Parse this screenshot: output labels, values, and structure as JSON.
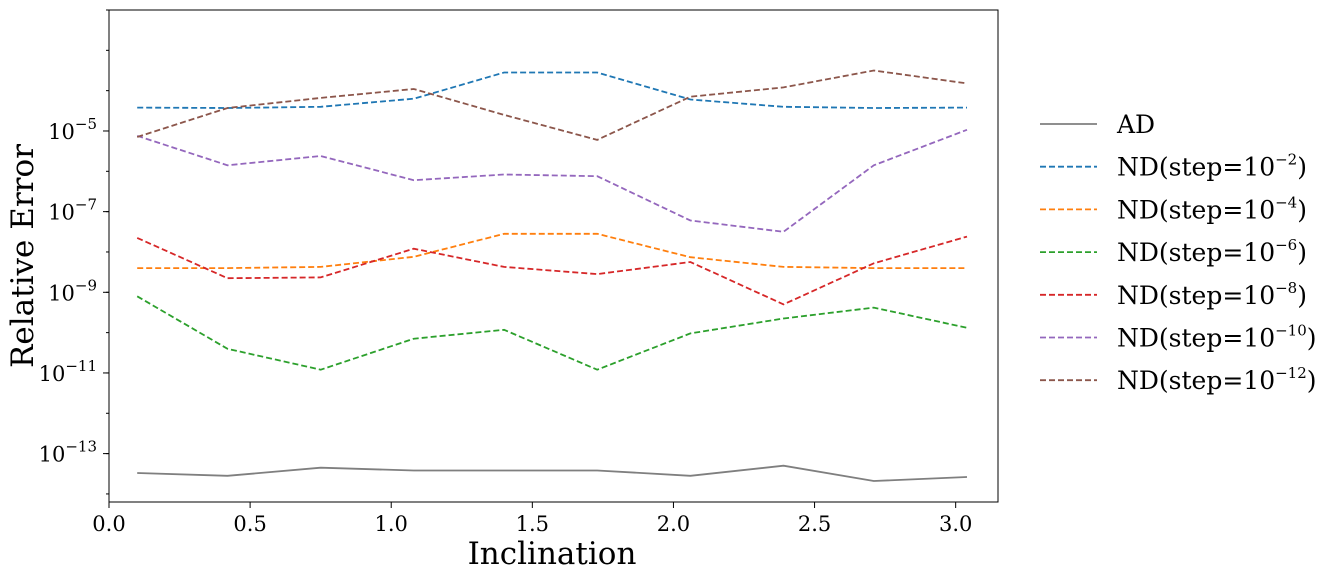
{
  "chart_data": {
    "type": "line",
    "xlabel": "Inclination",
    "ylabel": "Relative Error",
    "xlim": [
      0.0,
      3.15
    ],
    "ylim_log10": [
      -14.2,
      -2.0
    ],
    "yscale": "log",
    "grid": false,
    "legend_placement": "outside-right",
    "x_ticks": [
      {
        "value": 0.0,
        "label": "0.0"
      },
      {
        "value": 0.5,
        "label": "0.5"
      },
      {
        "value": 1.0,
        "label": "1.0"
      },
      {
        "value": 1.5,
        "label": "1.5"
      },
      {
        "value": 2.0,
        "label": "2.0"
      },
      {
        "value": 2.5,
        "label": "2.5"
      },
      {
        "value": 3.0,
        "label": "3.0"
      }
    ],
    "y_ticks": [
      {
        "exp": -5,
        "base": "10",
        "sup": "−5"
      },
      {
        "exp": -7,
        "base": "10",
        "sup": "−7"
      },
      {
        "exp": -9,
        "base": "10",
        "sup": "−9"
      },
      {
        "exp": -11,
        "base": "10",
        "sup": "−11"
      },
      {
        "exp": -13,
        "base": "10",
        "sup": "−13"
      }
    ],
    "x": [
      0.1,
      0.42,
      0.75,
      1.08,
      1.4,
      1.73,
      2.06,
      2.39,
      2.71,
      3.04
    ],
    "series": [
      {
        "name": "AD",
        "label_base": "AD",
        "label_sup": "",
        "label_tail": "",
        "color": "#7f7f7f",
        "dash": "solid",
        "log10": [
          -13.48,
          -13.55,
          -13.35,
          -13.42,
          -13.42,
          -13.42,
          -13.55,
          -13.3,
          -13.68,
          -13.58
        ]
      },
      {
        "name": "ND(step=10^-2)",
        "label_base": "ND(step=10",
        "label_sup": "−2",
        "label_tail": ")",
        "color": "#1f77b4",
        "dash": "dashed",
        "log10": [
          -4.42,
          -4.43,
          -4.4,
          -4.2,
          -3.55,
          -3.55,
          -4.22,
          -4.4,
          -4.43,
          -4.42
        ]
      },
      {
        "name": "ND(step=10^-4)",
        "label_base": "ND(step=10",
        "label_sup": "−4",
        "label_tail": ")",
        "color": "#ff7f0e",
        "dash": "dashed",
        "log10": [
          -8.4,
          -8.4,
          -8.37,
          -8.12,
          -7.55,
          -7.55,
          -8.13,
          -8.37,
          -8.4,
          -8.4
        ]
      },
      {
        "name": "ND(step=10^-6)",
        "label_base": "ND(step=10",
        "label_sup": "−6",
        "label_tail": ")",
        "color": "#2ca02c",
        "dash": "dashed",
        "log10": [
          -9.1,
          -10.4,
          -10.92,
          -10.15,
          -9.93,
          -10.92,
          -10.02,
          -9.65,
          -9.38,
          -9.88
        ]
      },
      {
        "name": "ND(step=10^-8)",
        "label_base": "ND(step=10",
        "label_sup": "−8",
        "label_tail": ")",
        "color": "#d62728",
        "dash": "dashed",
        "log10": [
          -7.65,
          -8.65,
          -8.63,
          -7.92,
          -8.37,
          -8.55,
          -8.25,
          -9.3,
          -8.28,
          -7.62
        ]
      },
      {
        "name": "ND(step=10^-10)",
        "label_base": "ND(step=10",
        "label_sup": "−10",
        "label_tail": ")",
        "color": "#9467bd",
        "dash": "dashed",
        "log10": [
          -5.12,
          -5.85,
          -5.62,
          -6.22,
          -6.08,
          -6.12,
          -7.22,
          -7.5,
          -5.85,
          -4.97
        ]
      },
      {
        "name": "ND(step=10^-12)",
        "label_base": "ND(step=10",
        "label_sup": "−12",
        "label_tail": ")",
        "color": "#8c564b",
        "dash": "dashed",
        "log10": [
          -5.15,
          -4.43,
          -4.18,
          -3.96,
          -4.6,
          -5.22,
          -4.15,
          -3.92,
          -3.5,
          -3.82
        ]
      }
    ]
  }
}
